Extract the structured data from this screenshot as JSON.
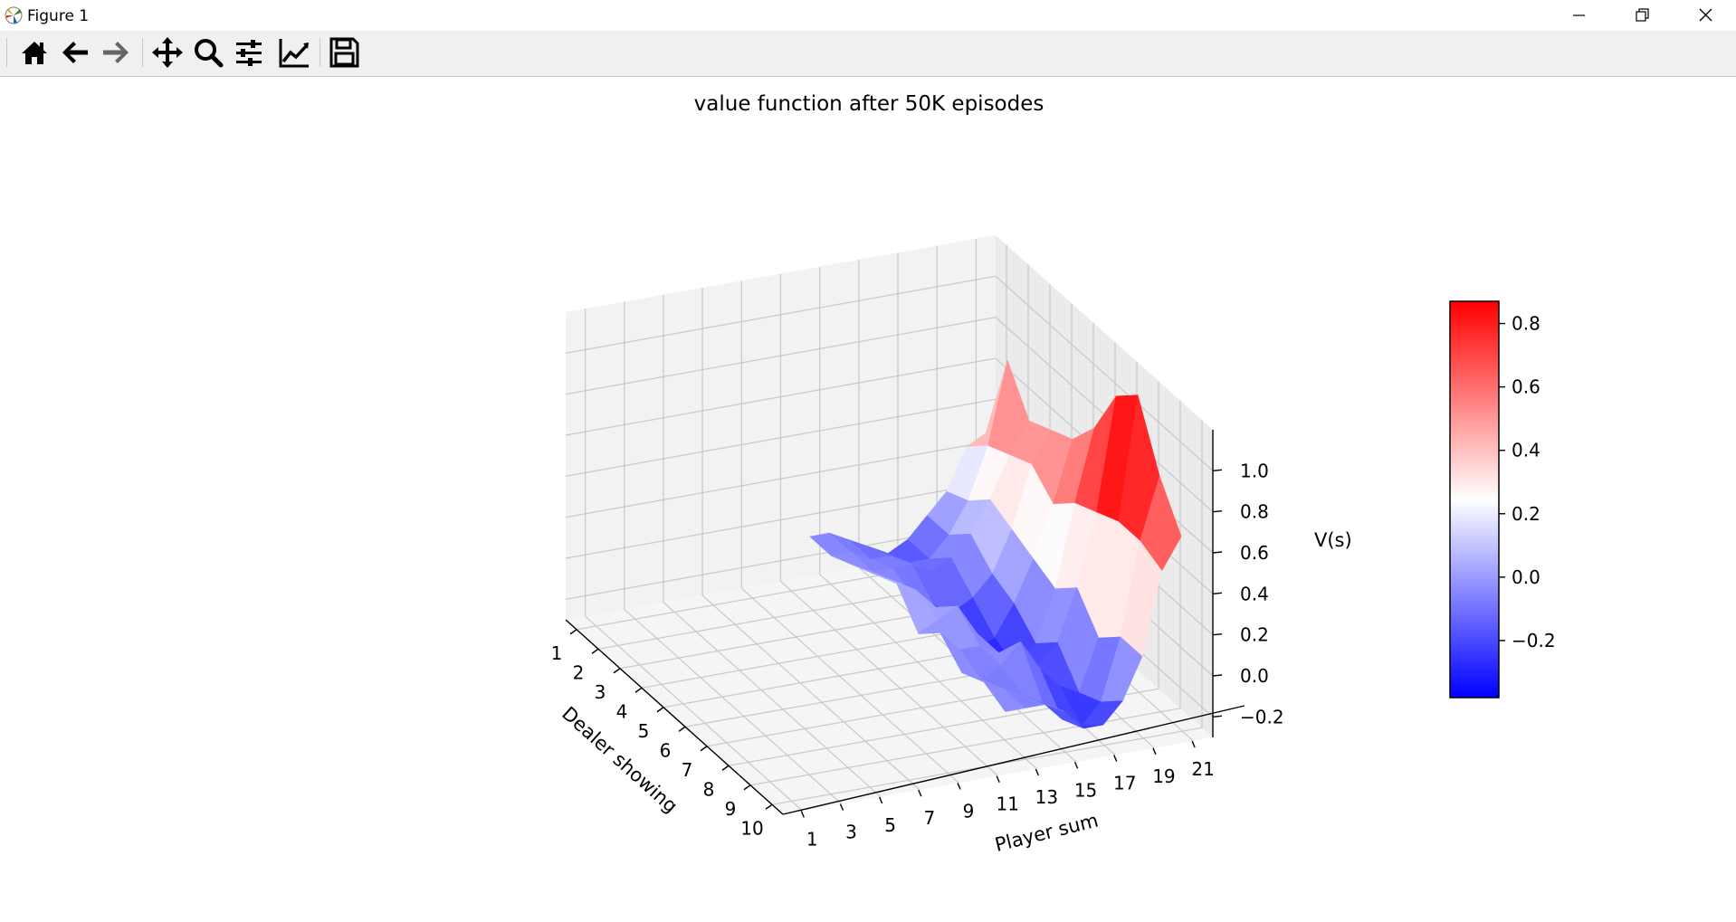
{
  "window": {
    "title": "Figure 1",
    "controls": [
      "minimize",
      "restore",
      "close"
    ]
  },
  "toolbar": {
    "buttons": [
      {
        "name": "home-button",
        "icon": "home-icon"
      },
      {
        "name": "back-button",
        "icon": "arrow-left-icon"
      },
      {
        "name": "forward-button",
        "icon": "arrow-right-icon"
      },
      {
        "name": "pan-button",
        "icon": "move-icon"
      },
      {
        "name": "zoom-button",
        "icon": "magnifier-icon"
      },
      {
        "name": "subplots-button",
        "icon": "sliders-icon"
      },
      {
        "name": "edit-axis-button",
        "icon": "line-chart-icon"
      },
      {
        "name": "save-button",
        "icon": "floppy-disk-icon"
      }
    ]
  },
  "chart_data": {
    "type": "surface",
    "title": "value function after 50K episodes",
    "xlabel": "Dealer showing",
    "ylabel": "Player sum",
    "zlabel": "V(s)",
    "dealer_ticks": [
      "1",
      "2",
      "3",
      "4",
      "5",
      "6",
      "7",
      "8",
      "9",
      "10"
    ],
    "player_ticks": [
      "1",
      "3",
      "5",
      "7",
      "9",
      "11",
      "13",
      "15",
      "17",
      "19",
      "21"
    ],
    "z_ticks": [
      "−0.2",
      "0.0",
      "0.2",
      "0.4",
      "0.6",
      "0.8",
      "1.0"
    ],
    "zlim": [
      -0.3,
      1.2
    ],
    "colorbar": {
      "cmap": "bwr",
      "ticks": [
        "−0.2",
        "0.0",
        "0.2",
        "0.4",
        "0.6",
        "0.8"
      ],
      "range": [
        -0.38,
        0.87
      ]
    },
    "dealer": [
      1,
      2,
      3,
      4,
      5,
      6,
      7,
      8,
      9,
      10
    ],
    "player": [
      12,
      13,
      14,
      15,
      16,
      17,
      18,
      19,
      20,
      21
    ],
    "values": [
      [
        -0.05,
        -0.05,
        -0.1,
        -0.15,
        -0.2,
        -0.15,
        -0.05,
        0.05,
        0.25,
        0.3
      ],
      [
        -0.05,
        -0.05,
        -0.1,
        -0.1,
        -0.15,
        -0.15,
        -0.05,
        0.1,
        0.35,
        0.75
      ],
      [
        0.0,
        -0.05,
        -0.05,
        -0.05,
        -0.1,
        -0.05,
        0.05,
        0.2,
        0.4,
        0.55
      ],
      [
        0.05,
        0.0,
        -0.1,
        -0.15,
        -0.2,
        -0.15,
        -0.05,
        0.15,
        0.45,
        0.6
      ],
      [
        0.1,
        0.05,
        -0.05,
        -0.2,
        -0.3,
        -0.25,
        -0.1,
        0.1,
        0.35,
        0.65
      ],
      [
        -0.05,
        0.0,
        0.05,
        -0.1,
        -0.25,
        -0.3,
        -0.2,
        0.05,
        0.45,
        0.8
      ],
      [
        0.05,
        -0.05,
        -0.05,
        -0.1,
        -0.15,
        -0.2,
        -0.1,
        0.15,
        0.5,
        1.05
      ],
      [
        -0.05,
        -0.1,
        -0.05,
        0.05,
        -0.1,
        -0.2,
        -0.25,
        0.0,
        0.55,
        1.15
      ],
      [
        0.0,
        -0.05,
        -0.1,
        -0.15,
        -0.25,
        -0.3,
        -0.2,
        0.1,
        0.55,
        0.85
      ],
      [
        -0.05,
        -0.05,
        -0.05,
        -0.1,
        -0.2,
        -0.2,
        -0.1,
        0.1,
        0.5,
        0.65
      ]
    ]
  }
}
